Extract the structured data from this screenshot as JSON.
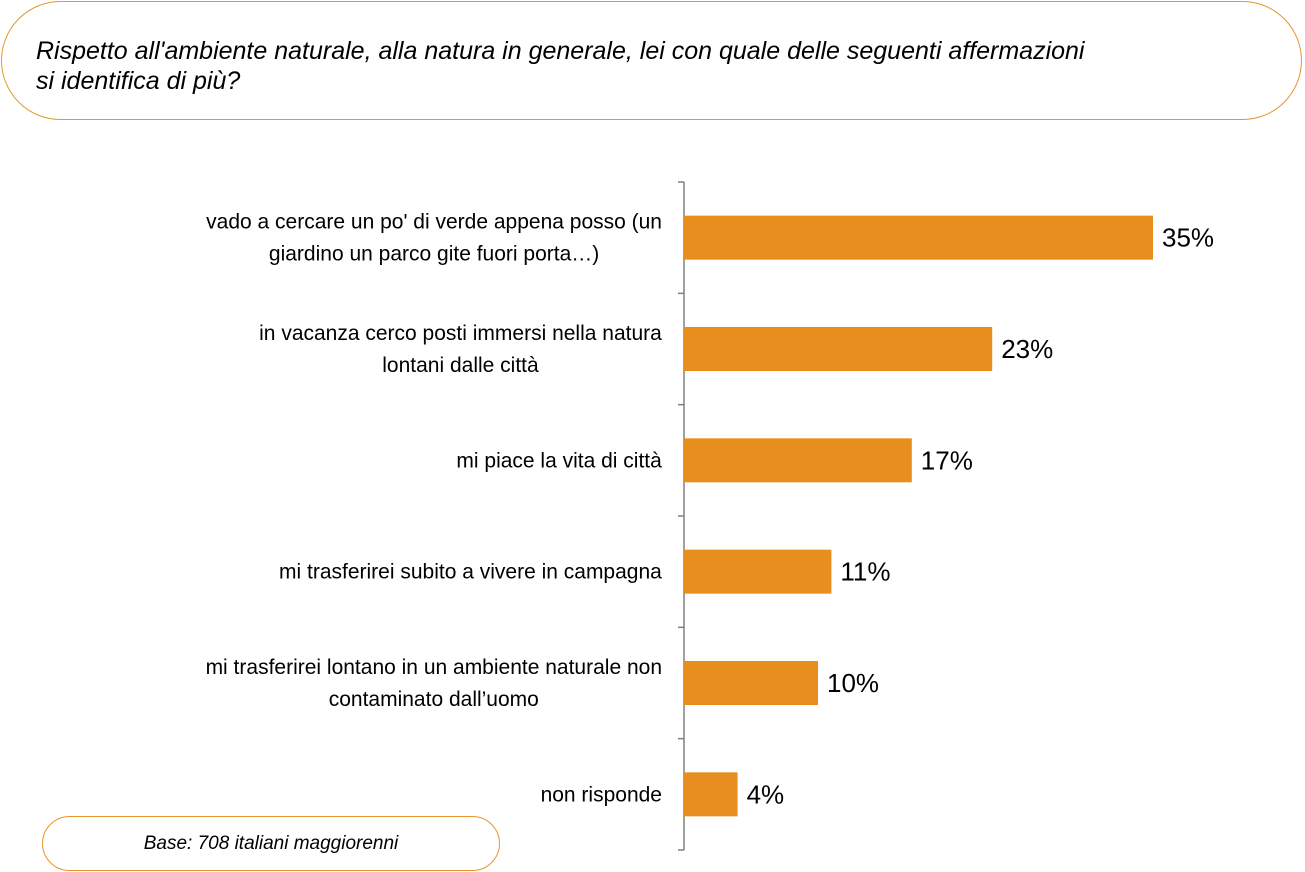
{
  "question": {
    "line1": "Rispetto all'ambiente naturale, alla natura in generale, lei con quale delle seguenti affermazioni",
    "line2": "si identifica di più?"
  },
  "base_note": "Base: 708 italiani maggiorenni",
  "colors": {
    "bar": "#e88e1f",
    "border": "#e8962a",
    "axis": "#808080"
  },
  "chart_data": {
    "type": "bar",
    "orientation": "horizontal",
    "categories": [
      [
        "vado a cercare un po' di verde appena posso (un",
        "giardino un parco gite fuori porta…)"
      ],
      [
        "in vacanza cerco posti immersi nella natura",
        "lontani dalle città"
      ],
      [
        "mi piace la vita di città"
      ],
      [
        "mi trasferirei subito a vivere in campagna"
      ],
      [
        "mi trasferirei lontano in un ambiente naturale non",
        "contaminato dall’uomo"
      ],
      [
        "non risponde"
      ]
    ],
    "values": [
      35,
      23,
      17,
      11,
      10,
      4
    ],
    "value_labels": [
      "35%",
      "23%",
      "17%",
      "11%",
      "10%",
      "4%"
    ],
    "unit": "%",
    "xlim": [
      0,
      35
    ],
    "grid": false,
    "legend": "none"
  }
}
